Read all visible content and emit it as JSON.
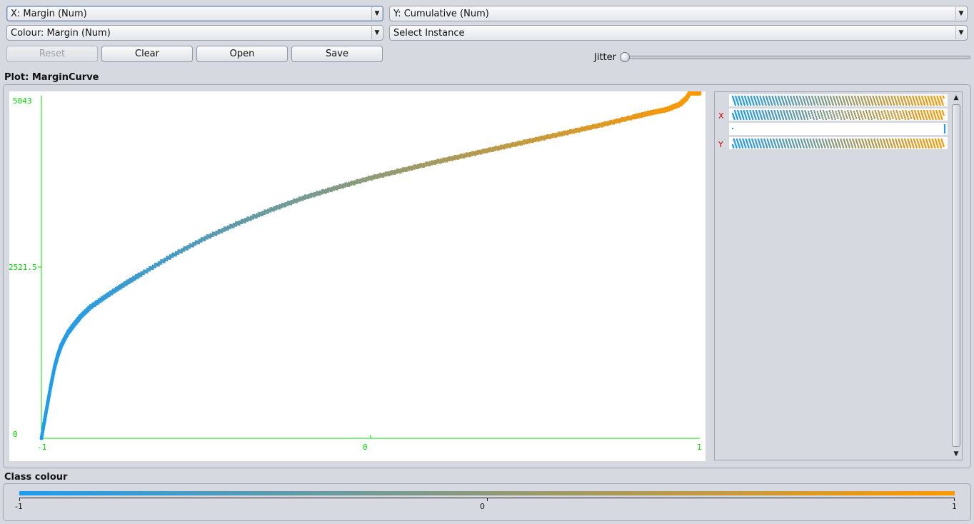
{
  "controls": {
    "x_axis_select": "X: Margin (Num)",
    "y_axis_select": "Y: Cumulative (Num)",
    "colour_select": "Colour: Margin (Num)",
    "instance_select": "Select Instance",
    "reset_label": "Reset",
    "clear_label": "Clear",
    "open_label": "Open",
    "save_label": "Save",
    "jitter_label": "Jitter",
    "jitter_value": 0
  },
  "plot": {
    "title": "Plot: MarginCurve"
  },
  "attribute_panel": {
    "x_marker": "X",
    "y_marker": "Y"
  },
  "class_colour": {
    "title": "Class colour",
    "min_label": "-1",
    "mid_label": "0",
    "max_label": "1"
  },
  "colors": {
    "axis": "#00dd00",
    "low": "#1c9cf0",
    "high": "#ff9900",
    "marker": "#d00000"
  },
  "chart_data": {
    "type": "scatter",
    "title": "",
    "xlabel": "Margin",
    "ylabel": "Cumulative",
    "xlim": [
      -1,
      1
    ],
    "ylim": [
      0,
      5043
    ],
    "x_tick_labels": [
      "-1",
      "0",
      "1"
    ],
    "y_tick_labels": [
      "0",
      "2521.5",
      "5043"
    ],
    "color_by": "Margin",
    "series": [
      {
        "x": [
          -1.0,
          -0.99,
          -0.98,
          -0.97,
          -0.96,
          -0.95,
          -0.94,
          -0.92,
          -0.9,
          -0.88,
          -0.85,
          -0.8,
          -0.75,
          -0.7,
          -0.6,
          -0.5,
          -0.4,
          -0.3,
          -0.2,
          -0.1,
          0.0,
          0.1,
          0.2,
          0.3,
          0.4,
          0.5,
          0.6,
          0.7,
          0.8,
          0.85,
          0.9,
          0.94,
          0.96,
          0.98,
          0.99,
          1.0
        ],
        "y": [
          0,
          280,
          550,
          820,
          1060,
          1240,
          1380,
          1570,
          1700,
          1820,
          1960,
          2130,
          2290,
          2440,
          2730,
          2990,
          3210,
          3410,
          3590,
          3740,
          3880,
          4000,
          4120,
          4230,
          4340,
          4450,
          4560,
          4670,
          4790,
          4850,
          4900,
          4980,
          5070,
          5240,
          5450,
          5730
        ]
      }
    ]
  }
}
